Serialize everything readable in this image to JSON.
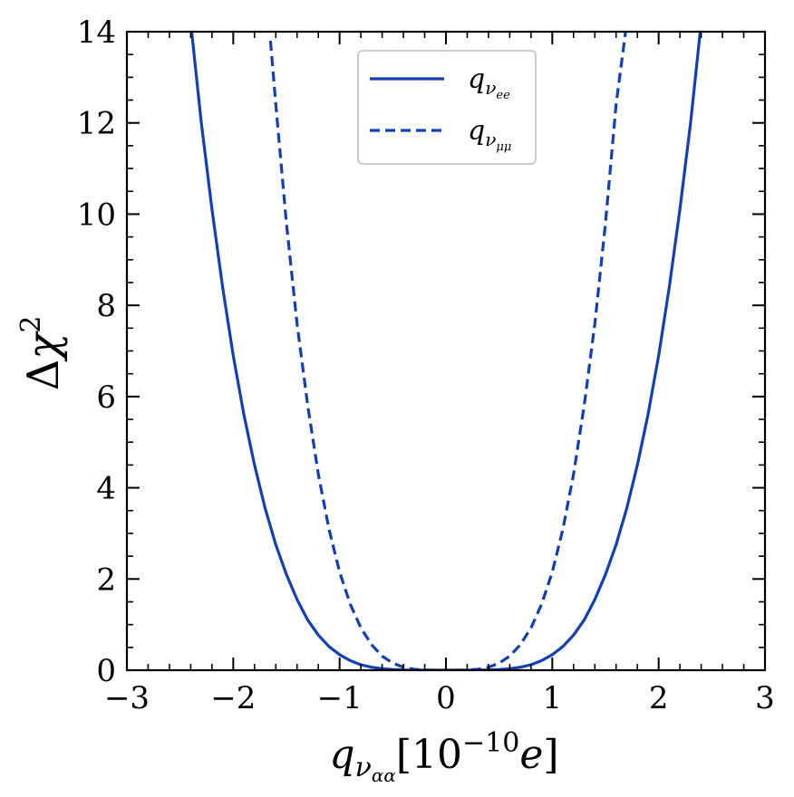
{
  "chart_data": {
    "type": "line",
    "title": "",
    "xlabel": {
      "base": "q",
      "sub": "ν",
      "subsub": "αα",
      "bracket_open": "[",
      "power_base": "10",
      "power_exp": "−10",
      "unit": "e",
      "bracket_close": "]"
    },
    "ylabel": {
      "prefix": "Δ",
      "symbol": "χ",
      "exp": "2"
    },
    "xlim": [
      -3,
      3
    ],
    "ylim": [
      0,
      14
    ],
    "xticks": [
      -3,
      -2,
      -1,
      0,
      1,
      2,
      3
    ],
    "xtick_labels": [
      "−3",
      "−2",
      "−1",
      "0",
      "1",
      "2",
      "3"
    ],
    "yticks": [
      0,
      2,
      4,
      6,
      8,
      10,
      12,
      14
    ],
    "ytick_labels": [
      "0",
      "2",
      "4",
      "6",
      "8",
      "10",
      "12",
      "14"
    ],
    "grid": false,
    "legend_position": "top-center",
    "color": "#123fb3",
    "series": [
      {
        "name": "q_ν_ee",
        "legend": {
          "base": "q",
          "sub": "ν",
          "subsub": "ee"
        },
        "style": "solid",
        "x": [
          -2.4,
          -2.3,
          -2.2,
          -2.1,
          -2.0,
          -1.9,
          -1.8,
          -1.7,
          -1.6,
          -1.5,
          -1.4,
          -1.3,
          -1.2,
          -1.1,
          -1.0,
          -0.9,
          -0.8,
          -0.7,
          -0.6,
          -0.5,
          -0.4,
          -0.3,
          -0.2,
          -0.1,
          0.0,
          0.1,
          0.2,
          0.3,
          0.4,
          0.5,
          0.6,
          0.7,
          0.8,
          0.9,
          1.0,
          1.1,
          1.2,
          1.3,
          1.4,
          1.5,
          1.6,
          1.7,
          1.8,
          1.9,
          2.0,
          2.1,
          2.2,
          2.3,
          2.4
        ],
        "y": [
          14.2,
          12.0,
          10.1,
          8.4,
          6.9,
          5.6,
          4.5,
          3.55,
          2.75,
          2.1,
          1.55,
          1.1,
          0.77,
          0.52,
          0.34,
          0.21,
          0.12,
          0.065,
          0.033,
          0.015,
          0.006,
          0.002,
          0.0005,
          0.0,
          0.0,
          0.0,
          0.0005,
          0.002,
          0.006,
          0.015,
          0.033,
          0.065,
          0.12,
          0.21,
          0.34,
          0.52,
          0.77,
          1.1,
          1.55,
          2.1,
          2.75,
          3.55,
          4.5,
          5.6,
          6.9,
          8.4,
          10.1,
          12.0,
          14.2
        ]
      },
      {
        "name": "q_ν_μμ",
        "legend": {
          "base": "q",
          "sub": "ν",
          "subsub": "μμ"
        },
        "style": "dashed",
        "x": [
          -1.65,
          -1.6,
          -1.5,
          -1.4,
          -1.3,
          -1.2,
          -1.1,
          -1.0,
          -0.9,
          -0.8,
          -0.7,
          -0.6,
          -0.5,
          -0.4,
          -0.3,
          -0.2,
          -0.1,
          0.0,
          0.1,
          0.2,
          0.3,
          0.4,
          0.5,
          0.6,
          0.7,
          0.8,
          0.9,
          1.0,
          1.1,
          1.2,
          1.3,
          1.4,
          1.5,
          1.6,
          1.7
        ],
        "y": [
          13.8,
          12.4,
          9.8,
          7.6,
          5.8,
          4.3,
          3.1,
          2.15,
          1.45,
          0.93,
          0.56,
          0.31,
          0.155,
          0.065,
          0.02,
          0.004,
          0.0,
          0.0,
          0.0,
          0.004,
          0.02,
          0.065,
          0.155,
          0.31,
          0.56,
          0.93,
          1.45,
          2.15,
          3.1,
          4.3,
          5.8,
          7.6,
          9.8,
          12.4,
          14.2
        ]
      }
    ]
  }
}
